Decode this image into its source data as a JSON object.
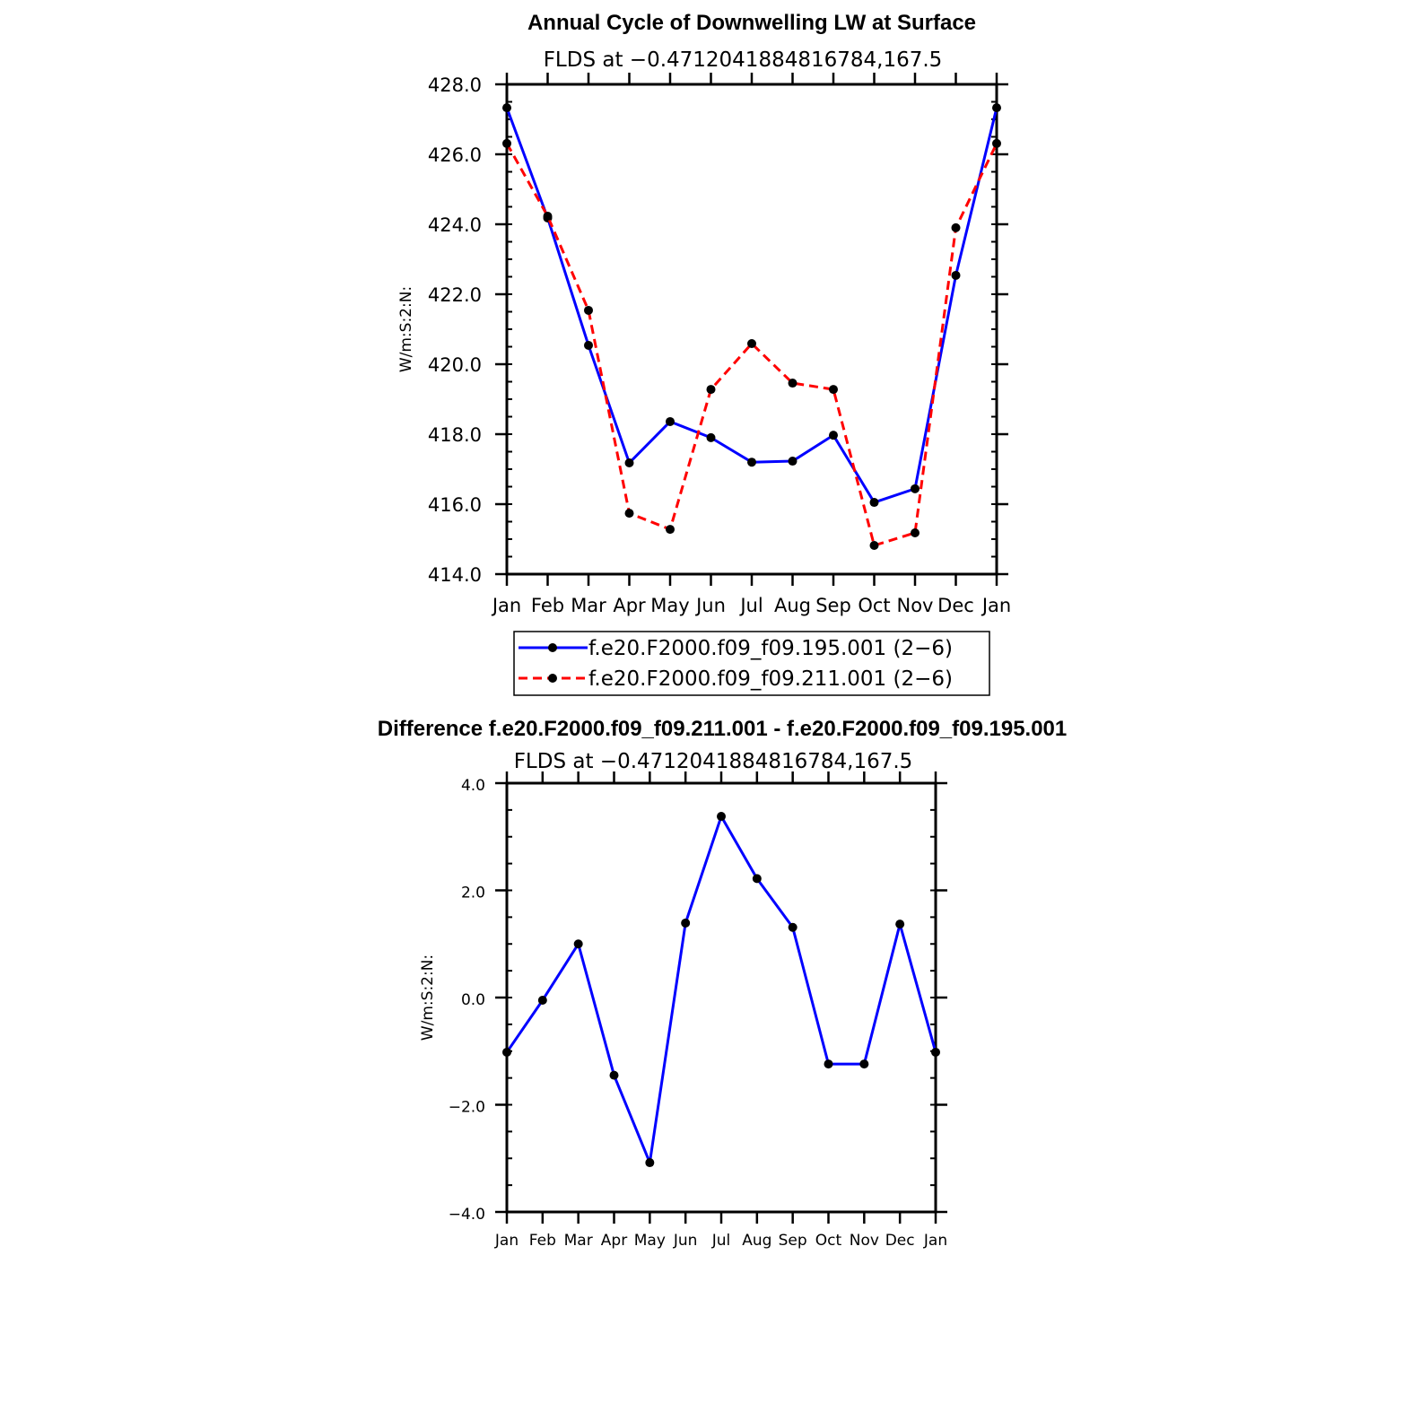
{
  "chart_data": [
    {
      "type": "line",
      "title": "Annual Cycle of Downwelling LW at Surface",
      "subtitle": "FLDS at −0.4712041884816784,167.5",
      "ylabel": "W/m:S:2:N:",
      "xlabel": "",
      "categories": [
        "Jan",
        "Feb",
        "Mar",
        "Apr",
        "May",
        "Jun",
        "Jul",
        "Aug",
        "Sep",
        "Oct",
        "Nov",
        "Dec",
        "Jan"
      ],
      "ylim": [
        414.0,
        428.0
      ],
      "yticks": [
        "414.0",
        "416.0",
        "418.0",
        "420.0",
        "422.0",
        "424.0",
        "426.0",
        "428.0"
      ],
      "grid": false,
      "legend_placement": "bottom",
      "series": [
        {
          "name": "f.e20.F2000.f09_f09.195.001 (2−6)",
          "color": "#0000ff",
          "dash": "solid",
          "values": [
            427.33,
            424.18,
            420.54,
            417.18,
            418.36,
            417.9,
            417.2,
            417.23,
            417.97,
            416.05,
            416.44,
            422.54,
            427.33
          ]
        },
        {
          "name": "f.e20.F2000.f09_f09.211.001 (2−6)",
          "color": "#ff0000",
          "dash": "dashed",
          "values": [
            426.31,
            424.23,
            421.54,
            415.74,
            415.28,
            419.28,
            420.59,
            419.46,
            419.28,
            414.82,
            415.18,
            423.9,
            426.31
          ]
        }
      ]
    },
    {
      "type": "line",
      "title": "Difference f.e20.F2000.f09_f09.211.001 - f.e20.F2000.f09_f09.195.001",
      "subtitle": "FLDS at −0.4712041884816784,167.5",
      "ylabel": "W/m:S:2:N:",
      "xlabel": "",
      "categories": [
        "Jan",
        "Feb",
        "Mar",
        "Apr",
        "May",
        "Jun",
        "Jul",
        "Aug",
        "Sep",
        "Oct",
        "Nov",
        "Dec",
        "Jan"
      ],
      "ylim": [
        -4.0,
        4.0
      ],
      "yticks": [
        "−4.0",
        "−2.0",
        "0.0",
        "2.0",
        "4.0"
      ],
      "grid": false,
      "series": [
        {
          "color": "#0000ff",
          "dash": "solid",
          "values": [
            -1.02,
            -0.05,
            1.0,
            -1.45,
            -3.08,
            1.39,
            3.38,
            2.22,
            1.31,
            -1.24,
            -1.24,
            1.37,
            -1.02
          ]
        }
      ]
    }
  ]
}
